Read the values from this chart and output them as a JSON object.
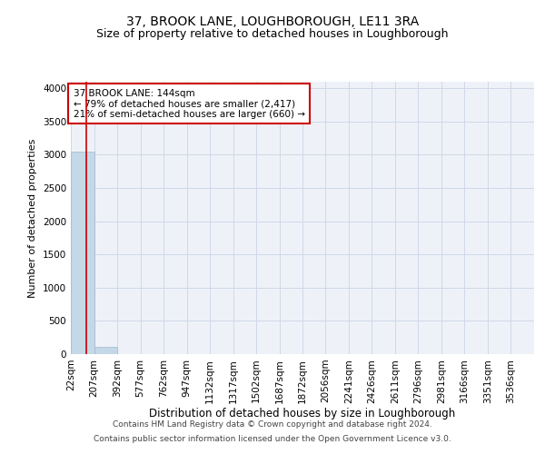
{
  "title": "37, BROOK LANE, LOUGHBOROUGH, LE11 3RA",
  "subtitle": "Size of property relative to detached houses in Loughborough",
  "xlabel": "Distribution of detached houses by size in Loughborough",
  "ylabel": "Number of detached properties",
  "footer_line1": "Contains HM Land Registry data © Crown copyright and database right 2024.",
  "footer_line2": "Contains public sector information licensed under the Open Government Licence v3.0.",
  "annotation_line1": "37 BROOK LANE: 144sqm",
  "annotation_line2": "← 79% of detached houses are smaller (2,417)",
  "annotation_line3": "21% of semi-detached houses are larger (660) →",
  "property_size_sqm": 144,
  "bar_edges": [
    22,
    207,
    392,
    577,
    762,
    947,
    1132,
    1317,
    1502,
    1687,
    1872,
    2056,
    2241,
    2426,
    2611,
    2796,
    2981,
    3166,
    3351,
    3536,
    3721
  ],
  "bar_heights": [
    3050,
    115,
    4,
    1,
    2,
    1,
    0,
    1,
    0,
    0,
    0,
    0,
    0,
    0,
    0,
    0,
    0,
    0,
    0,
    0
  ],
  "bar_color": "#c5d8e8",
  "bar_edgecolor": "#a0b8cc",
  "grid_color": "#d0d8e8",
  "background_color": "#eef2f8",
  "red_line_color": "#cc0000",
  "annotation_box_edgecolor": "#cc0000",
  "annotation_box_facecolor": "#ffffff",
  "ylim": [
    0,
    4100
  ],
  "yticks": [
    0,
    500,
    1000,
    1500,
    2000,
    2500,
    3000,
    3500,
    4000
  ],
  "title_fontsize": 10,
  "subtitle_fontsize": 9,
  "xlabel_fontsize": 8.5,
  "ylabel_fontsize": 8,
  "tick_fontsize": 7.5,
  "annotation_fontsize": 7.5,
  "footer_fontsize": 6.5
}
